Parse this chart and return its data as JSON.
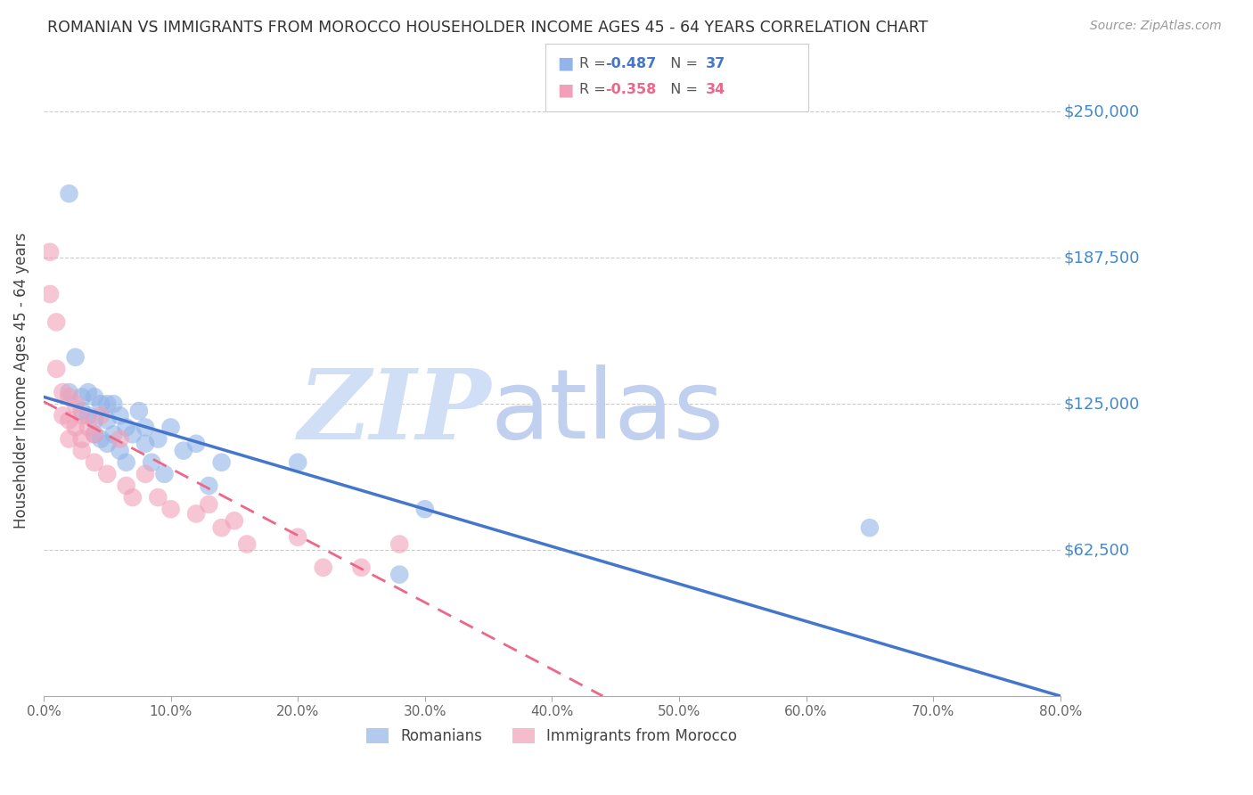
{
  "title": "ROMANIAN VS IMMIGRANTS FROM MOROCCO HOUSEHOLDER INCOME AGES 45 - 64 YEARS CORRELATION CHART",
  "source": "Source: ZipAtlas.com",
  "ylabel": "Householder Income Ages 45 - 64 years",
  "ytick_labels": [
    "$62,500",
    "$125,000",
    "$187,500",
    "$250,000"
  ],
  "ytick_values": [
    62500,
    125000,
    187500,
    250000
  ],
  "xlim": [
    0.0,
    0.8
  ],
  "ylim": [
    0,
    270000
  ],
  "blue_color": "#92b4e8",
  "pink_color": "#f0a0b8",
  "trendline_blue": "#4477cc",
  "trendline_pink": "#ee6688",
  "watermark_zip_color": "#d0dff5",
  "watermark_atlas_color": "#c0d0ee",
  "axis_color": "#4488cc",
  "grid_color": "#cccccc",
  "title_color": "#333333",
  "source_color": "#999999",
  "romanian_x": [
    0.02,
    0.025,
    0.03,
    0.03,
    0.035,
    0.035,
    0.04,
    0.04,
    0.04,
    0.045,
    0.045,
    0.05,
    0.05,
    0.05,
    0.055,
    0.055,
    0.06,
    0.06,
    0.065,
    0.065,
    0.07,
    0.075,
    0.08,
    0.08,
    0.085,
    0.09,
    0.095,
    0.1,
    0.11,
    0.12,
    0.13,
    0.14,
    0.2,
    0.28,
    0.3,
    0.65,
    0.02
  ],
  "romanian_y": [
    215000,
    145000,
    128000,
    122000,
    130000,
    120000,
    128000,
    118000,
    112000,
    125000,
    110000,
    125000,
    118000,
    108000,
    125000,
    112000,
    120000,
    105000,
    115000,
    100000,
    112000,
    122000,
    115000,
    108000,
    100000,
    110000,
    95000,
    115000,
    105000,
    108000,
    90000,
    100000,
    100000,
    52000,
    80000,
    72000,
    130000
  ],
  "morocco_x": [
    0.005,
    0.005,
    0.01,
    0.01,
    0.015,
    0.015,
    0.02,
    0.02,
    0.02,
    0.025,
    0.025,
    0.03,
    0.03,
    0.03,
    0.035,
    0.04,
    0.04,
    0.045,
    0.05,
    0.06,
    0.065,
    0.07,
    0.08,
    0.09,
    0.1,
    0.12,
    0.13,
    0.14,
    0.15,
    0.16,
    0.2,
    0.22,
    0.25,
    0.28
  ],
  "morocco_y": [
    190000,
    172000,
    160000,
    140000,
    130000,
    120000,
    128000,
    118000,
    110000,
    125000,
    115000,
    120000,
    110000,
    105000,
    115000,
    112000,
    100000,
    120000,
    95000,
    110000,
    90000,
    85000,
    95000,
    85000,
    80000,
    78000,
    82000,
    72000,
    75000,
    65000,
    68000,
    55000,
    55000,
    65000
  ],
  "trendline_blue_x0": 0.0,
  "trendline_blue_y0": 128000,
  "trendline_blue_x1": 0.8,
  "trendline_blue_y1": 0,
  "trendline_pink_x0": 0.0,
  "trendline_pink_y0": 126000,
  "trendline_pink_x1": 0.44,
  "trendline_pink_y1": 0,
  "background_color": "#ffffff"
}
